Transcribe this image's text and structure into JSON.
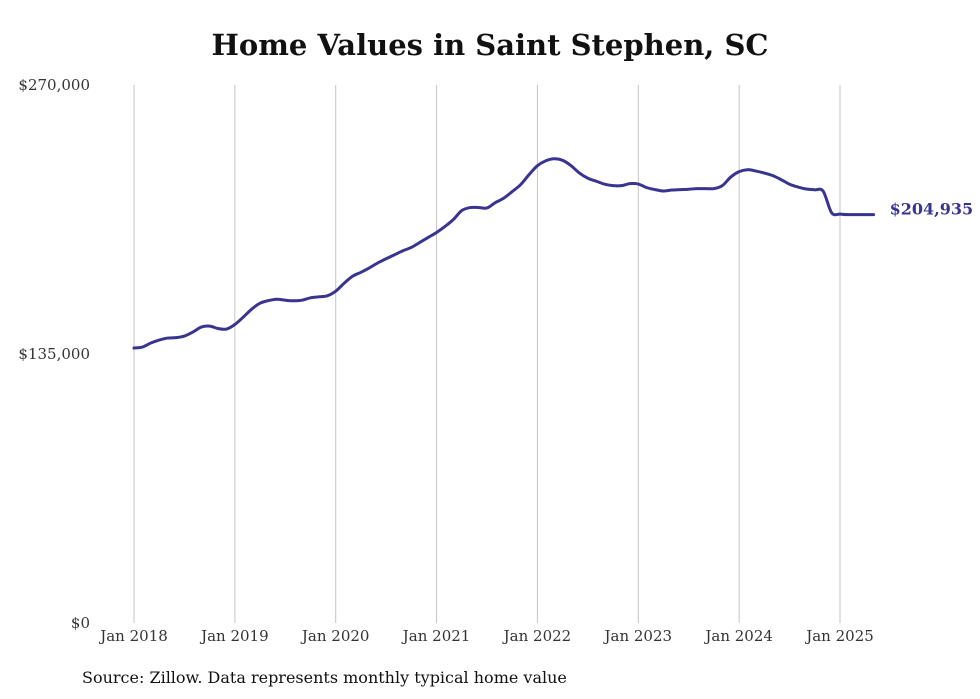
{
  "chart_data": {
    "type": "line",
    "title": "Home Values in Saint Stephen, SC",
    "source": "Source: Zillow. Data represents monthly typical home value",
    "xlabel": "",
    "ylabel": "",
    "ylim": [
      0,
      270000
    ],
    "yticks": [
      {
        "value": 0,
        "label": "$0"
      },
      {
        "value": 135000,
        "label": "$135,000"
      },
      {
        "value": 270000,
        "label": "$270,000"
      }
    ],
    "xticks": [
      {
        "value": "2018-01",
        "label": "Jan 2018"
      },
      {
        "value": "2019-01",
        "label": "Jan 2019"
      },
      {
        "value": "2020-01",
        "label": "Jan 2020"
      },
      {
        "value": "2021-01",
        "label": "Jan 2021"
      },
      {
        "value": "2022-01",
        "label": "Jan 2022"
      },
      {
        "value": "2023-01",
        "label": "Jan 2023"
      },
      {
        "value": "2024-01",
        "label": "Jan 2024"
      },
      {
        "value": "2025-01",
        "label": "Jan 2025"
      }
    ],
    "xlim": [
      "2018-01",
      "2025-05"
    ],
    "grid": {
      "vertical": true,
      "horizontal": false
    },
    "line_color": "#3a3491",
    "series": [
      {
        "name": "",
        "x": [
          "2018-01",
          "2018-02",
          "2018-03",
          "2018-04",
          "2018-05",
          "2018-06",
          "2018-07",
          "2018-08",
          "2018-09",
          "2018-10",
          "2018-11",
          "2018-12",
          "2019-01",
          "2019-02",
          "2019-03",
          "2019-04",
          "2019-05",
          "2019-06",
          "2019-07",
          "2019-08",
          "2019-09",
          "2019-10",
          "2019-11",
          "2019-12",
          "2020-01",
          "2020-02",
          "2020-03",
          "2020-04",
          "2020-05",
          "2020-06",
          "2020-07",
          "2020-08",
          "2020-09",
          "2020-10",
          "2020-11",
          "2020-12",
          "2021-01",
          "2021-02",
          "2021-03",
          "2021-04",
          "2021-05",
          "2021-06",
          "2021-07",
          "2021-08",
          "2021-09",
          "2021-10",
          "2021-11",
          "2021-12",
          "2022-01",
          "2022-02",
          "2022-03",
          "2022-04",
          "2022-05",
          "2022-06",
          "2022-07",
          "2022-08",
          "2022-09",
          "2022-10",
          "2022-11",
          "2022-12",
          "2023-01",
          "2023-02",
          "2023-03",
          "2023-04",
          "2023-05",
          "2023-06",
          "2023-07",
          "2023-08",
          "2023-09",
          "2023-10",
          "2023-11",
          "2023-12",
          "2024-01",
          "2024-02",
          "2024-03",
          "2024-04",
          "2024-05",
          "2024-06",
          "2024-07",
          "2024-08",
          "2024-09",
          "2024-10",
          "2024-11",
          "2024-12",
          "2025-01",
          "2025-02",
          "2025-03",
          "2025-04",
          "2025-05"
        ],
        "values": [
          138000,
          138500,
          140500,
          142000,
          143000,
          143200,
          144000,
          146000,
          148500,
          149000,
          147800,
          147500,
          149800,
          153500,
          157500,
          160500,
          161800,
          162500,
          162000,
          161700,
          162000,
          163200,
          163700,
          164200,
          166500,
          170500,
          174000,
          176000,
          178200,
          180700,
          182800,
          184800,
          186800,
          188500,
          191000,
          193500,
          196000,
          199000,
          202500,
          207000,
          208500,
          208500,
          208300,
          211000,
          213200,
          216500,
          220000,
          225000,
          229500,
          232000,
          233000,
          232200,
          229500,
          225800,
          223200,
          221700,
          220200,
          219500,
          219500,
          220500,
          220300,
          218500,
          217500,
          216800,
          217300,
          217500,
          217700,
          218000,
          218000,
          218000,
          219500,
          223800,
          226500,
          227500,
          226800,
          225800,
          224500,
          222500,
          220200,
          218800,
          217800,
          217400,
          216700,
          205900,
          205200,
          204935,
          204935,
          204935,
          204935
        ],
        "end_label": "$204,935"
      }
    ]
  }
}
